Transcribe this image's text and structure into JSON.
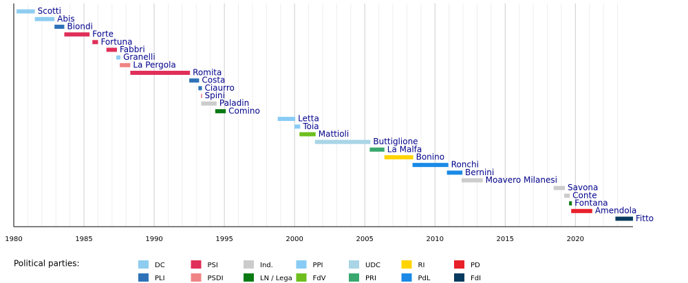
{
  "chart_data": {
    "type": "timeline",
    "xlim": [
      1980,
      2024.1
    ],
    "xticks": [
      1980,
      1985,
      1990,
      1995,
      2000,
      2005,
      2010,
      2015,
      2020
    ],
    "xticks_minor": [
      1981,
      1982,
      1983,
      1984,
      1986,
      1987,
      1988,
      1989,
      1991,
      1992,
      1993,
      1994,
      1996,
      1997,
      1998,
      1999,
      2001,
      2002,
      2003,
      2004,
      2006,
      2007,
      2008,
      2009,
      2011,
      2012,
      2013,
      2014,
      2016,
      2017,
      2018,
      2019,
      2021,
      2022,
      2023
    ],
    "grid": true,
    "legend_title": "Political parties:",
    "parties": [
      {
        "name": "DC",
        "color": "#8ecdf0"
      },
      {
        "name": "PLI",
        "color": "#2f72b8"
      },
      {
        "name": "PSI",
        "color": "#e0305a"
      },
      {
        "name": "PSDI",
        "color": "#f08484"
      },
      {
        "name": "Ind.",
        "color": "#cccccc"
      },
      {
        "name": "LN / Lega",
        "color": "#0a7a14"
      },
      {
        "name": "PPI",
        "color": "#88ccf5"
      },
      {
        "name": "FdV",
        "color": "#6ebf1e"
      },
      {
        "name": "UDC",
        "color": "#a9d5e6"
      },
      {
        "name": "PRI",
        "color": "#3aa86e"
      },
      {
        "name": "RI",
        "color": "#ffd400"
      },
      {
        "name": "PdL",
        "color": "#1a8ae6"
      },
      {
        "name": "PD",
        "color": "#e8202a"
      },
      {
        "name": "FdI",
        "color": "#063a5e"
      }
    ],
    "bars": [
      {
        "name": "Scotti",
        "start": 1980.2,
        "end": 1981.5,
        "party": 0
      },
      {
        "name": "Abis",
        "start": 1981.5,
        "end": 1982.9,
        "party": 0
      },
      {
        "name": "Biondi",
        "start": 1982.9,
        "end": 1983.6,
        "party": 1
      },
      {
        "name": "Forte",
        "start": 1983.6,
        "end": 1985.4,
        "party": 2
      },
      {
        "name": "Fortuna",
        "start": 1985.6,
        "end": 1986.0,
        "party": 2
      },
      {
        "name": "Fabbri",
        "start": 1986.6,
        "end": 1987.35,
        "party": 2
      },
      {
        "name": "Granelli",
        "start": 1987.3,
        "end": 1987.6,
        "party": 0
      },
      {
        "name": "La Pergola",
        "start": 1987.55,
        "end": 1988.3,
        "party": 3
      },
      {
        "name": "Romita",
        "start": 1988.3,
        "end": 1992.55,
        "party": 2
      },
      {
        "name": "Costa",
        "start": 1992.5,
        "end": 1993.2,
        "party": 1
      },
      {
        "name": "Ciaurro",
        "start": 1993.15,
        "end": 1993.4,
        "party": 1
      },
      {
        "name": "Spini",
        "start": 1993.35,
        "end": 1993.4,
        "party": 2
      },
      {
        "name": "Paladin",
        "start": 1993.35,
        "end": 1994.45,
        "party": 4
      },
      {
        "name": "Comino",
        "start": 1994.35,
        "end": 1995.1,
        "party": 5
      },
      {
        "name": "Letta",
        "start": 1998.8,
        "end": 2000.05,
        "party": 6
      },
      {
        "name": "Toia",
        "start": 2000.0,
        "end": 2000.4,
        "party": 6
      },
      {
        "name": "Mattioli",
        "start": 2000.35,
        "end": 2001.5,
        "party": 7
      },
      {
        "name": "Buttiglione",
        "start": 2001.45,
        "end": 2005.4,
        "party": 8
      },
      {
        "name": "La Malfa",
        "start": 2005.35,
        "end": 2006.4,
        "party": 9
      },
      {
        "name": "Bonino",
        "start": 2006.4,
        "end": 2008.45,
        "party": 10
      },
      {
        "name": "Ronchi",
        "start": 2008.4,
        "end": 2010.95,
        "party": 11
      },
      {
        "name": "Bernini",
        "start": 2010.85,
        "end": 2011.95,
        "party": 11
      },
      {
        "name": "Moavero Milanesi",
        "start": 2011.9,
        "end": 2013.4,
        "party": 4
      },
      {
        "name": "Savona",
        "start": 2018.45,
        "end": 2019.25,
        "party": 4
      },
      {
        "name": "Conte",
        "start": 2019.2,
        "end": 2019.6,
        "party": 4
      },
      {
        "name": "Fontana",
        "start": 2019.55,
        "end": 2019.75,
        "party": 5
      },
      {
        "name": "Amendola",
        "start": 2019.7,
        "end": 2021.2,
        "party": 12
      },
      {
        "name": "Fitto",
        "start": 2022.85,
        "end": 2024.1,
        "party": 13
      }
    ]
  }
}
